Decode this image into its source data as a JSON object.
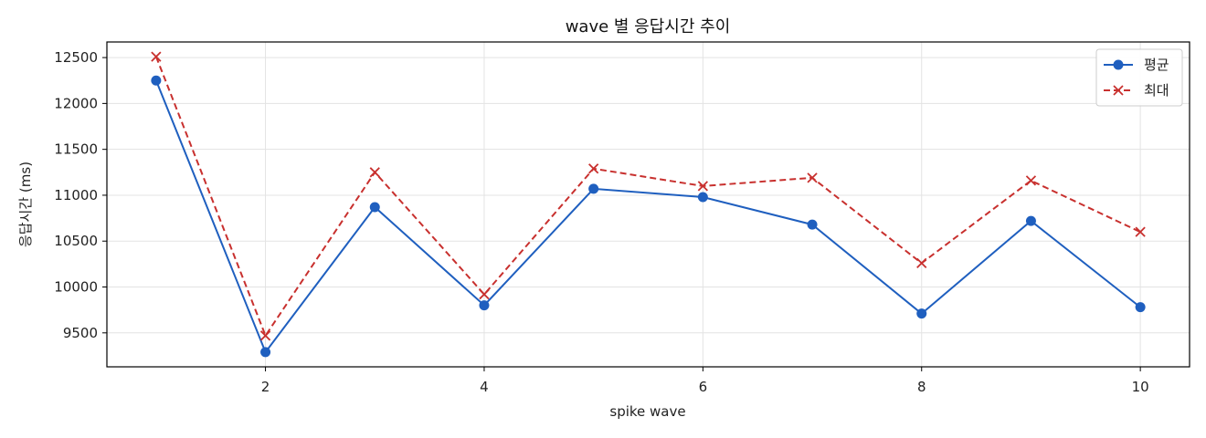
{
  "chart_data": {
    "type": "line",
    "title": "wave 별 응답시간 추이",
    "xlabel": "spike wave",
    "ylabel": "응답시간 (ms)",
    "x": [
      1,
      2,
      3,
      4,
      5,
      6,
      7,
      8,
      9,
      10
    ],
    "xlim": [
      0.55,
      10.45
    ],
    "ylim": [
      9130,
      12670
    ],
    "xticks": [
      2,
      4,
      6,
      8,
      10
    ],
    "yticks": [
      9500,
      10000,
      10500,
      11000,
      11500,
      12000,
      12500
    ],
    "grid": true,
    "legend_position": "top-right",
    "series": [
      {
        "name": "평균",
        "values": [
          12250,
          9290,
          10870,
          9800,
          11070,
          10980,
          10680,
          9710,
          10720,
          9780
        ],
        "color": "#1f5fbf",
        "line_style": "solid",
        "marker": "circle"
      },
      {
        "name": "최대",
        "values": [
          12510,
          9470,
          11250,
          9920,
          11290,
          11100,
          11190,
          10260,
          11160,
          10600
        ],
        "color": "#c8302e",
        "line_style": "dashed",
        "marker": "x"
      }
    ]
  }
}
